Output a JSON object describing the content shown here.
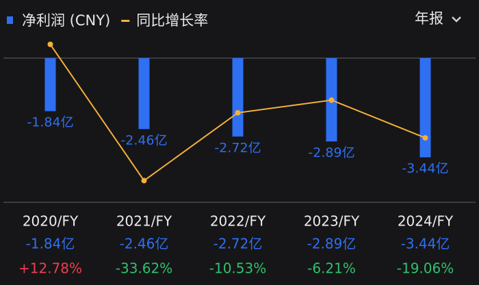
{
  "chart_data": {
    "type": "bar-line",
    "categories": [
      "2020/FY",
      "2021/FY",
      "2022/FY",
      "2023/FY",
      "2024/FY"
    ],
    "series": [
      {
        "name": "净利润 (CNY)",
        "color": "#2f6ff2",
        "type": "bar",
        "values": [
          -1.84,
          -2.46,
          -2.72,
          -2.89,
          -3.44
        ],
        "value_labels": [
          "-1.84亿",
          "-2.46亿",
          "-2.72亿",
          "-2.89亿",
          "-3.44亿"
        ]
      },
      {
        "name": "同比增长率",
        "color": "#f4b13a",
        "type": "line",
        "axis": "y2",
        "values": [
          12.78,
          -33.62,
          -10.53,
          -6.21,
          -19.06
        ],
        "value_labels": [
          "+12.78%",
          "-33.62%",
          "-10.53%",
          "-6.21%",
          "-19.06%"
        ]
      }
    ],
    "ylim": [
      -5,
      0
    ],
    "y2lim": [
      -41,
      8.1
    ],
    "positive_color": "#f23d4f",
    "negative_color": "#2fc26b",
    "period": "年报"
  }
}
